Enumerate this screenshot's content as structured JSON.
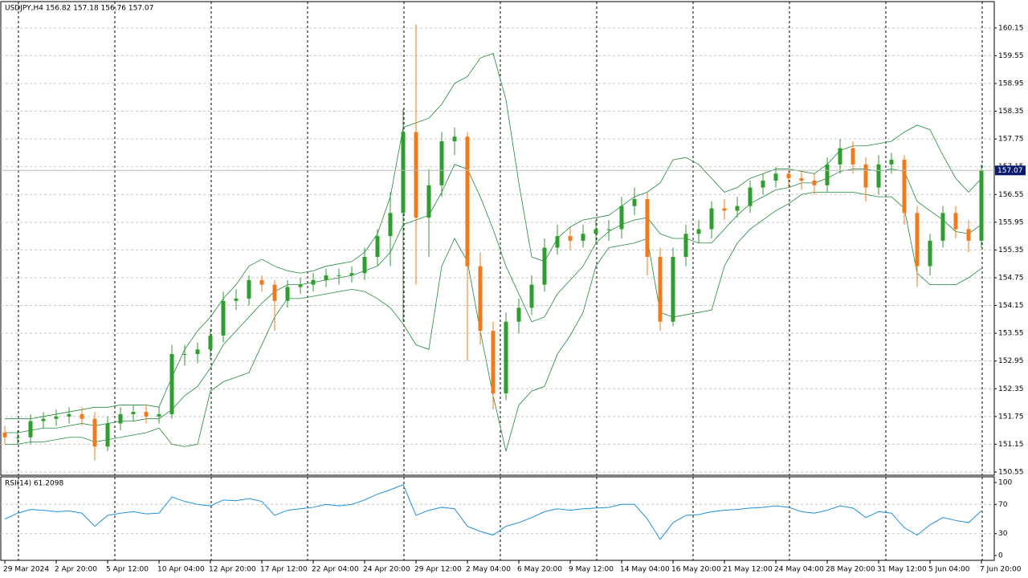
{
  "chart_data": [
    {
      "type": "candlestick",
      "title": "USDJPY,H4  156.82 157.18 156.76 157.07",
      "categories": [
        "29 Mar 2024",
        null,
        null,
        null,
        "2 Apr 20:00",
        null,
        null,
        null,
        "5 Apr 12:00",
        null,
        null,
        null,
        "10 Apr 04:00",
        null,
        null,
        null,
        "12 Apr 20:00",
        null,
        null,
        null,
        "17 Apr 12:00",
        null,
        null,
        null,
        "22 Apr 04:00",
        null,
        null,
        null,
        "24 Apr 20:00",
        null,
        null,
        null,
        "29 Apr 12:00",
        null,
        null,
        null,
        "2 May 04:00",
        null,
        null,
        null,
        "6 May 20:00",
        null,
        null,
        null,
        "9 May 12:00",
        null,
        null,
        null,
        "14 May 04:00",
        null,
        null,
        null,
        "16 May 20:00",
        null,
        null,
        null,
        "21 May 12:00",
        null,
        null,
        null,
        "24 May 04:00",
        null,
        null,
        null,
        "28 May 20:00",
        null,
        null,
        null,
        "31 May 12:00",
        null,
        null,
        null,
        "5 Jun 04:00",
        null,
        null,
        null,
        "7 Jun 20:00"
      ],
      "open": [
        151.4,
        151.3,
        151.3,
        151.65,
        151.7,
        151.75,
        151.8,
        151.7,
        151.1,
        151.6,
        151.8,
        151.85,
        151.75,
        151.8,
        153.1,
        153.1,
        153.2,
        153.5,
        154.25,
        154.3,
        154.7,
        154.6,
        154.25,
        154.55,
        154.6,
        154.7,
        154.8,
        154.8,
        154.85,
        155.2,
        155.65,
        156.15,
        157.9,
        156.05,
        156.75,
        157.7,
        157.8,
        155.0,
        153.6,
        152.25,
        153.8,
        154.1,
        154.6,
        155.4,
        155.65,
        155.55,
        155.7,
        155.8,
        155.8,
        156.3,
        156.45,
        155.2,
        153.8,
        155.2,
        155.7,
        155.8,
        156.25,
        156.2,
        156.3,
        156.7,
        156.85,
        157.0,
        156.9,
        156.85,
        156.75,
        157.2,
        157.55,
        157.2,
        156.7,
        157.2,
        157.3,
        156.15,
        155.0,
        155.55,
        156.15,
        155.8,
        155.55
      ],
      "high": [
        151.55,
        151.45,
        151.8,
        151.85,
        151.9,
        151.95,
        151.95,
        151.85,
        151.75,
        151.95,
        152.0,
        152.0,
        151.95,
        153.3,
        153.3,
        153.35,
        153.65,
        154.45,
        154.5,
        154.8,
        154.8,
        154.7,
        154.7,
        154.75,
        154.85,
        154.95,
        154.95,
        155.0,
        155.4,
        155.8,
        156.6,
        158.4,
        160.23,
        157.1,
        157.9,
        158.0,
        157.9,
        155.3,
        153.8,
        154.0,
        154.3,
        154.8,
        155.6,
        155.9,
        155.85,
        155.9,
        156.0,
        156.0,
        156.5,
        156.7,
        156.6,
        155.4,
        155.4,
        155.9,
        156.0,
        156.4,
        156.45,
        156.5,
        156.85,
        157.0,
        157.15,
        157.1,
        157.05,
        157.0,
        157.35,
        157.75,
        157.7,
        157.35,
        157.4,
        157.45,
        157.4,
        156.3,
        155.7,
        156.3,
        156.3,
        156.0,
        157.2
      ],
      "low": [
        151.15,
        151.15,
        151.15,
        151.5,
        151.55,
        151.6,
        151.55,
        150.8,
        151.0,
        151.45,
        151.65,
        151.6,
        151.6,
        151.7,
        152.85,
        152.9,
        153.0,
        153.35,
        154.05,
        154.15,
        154.45,
        153.6,
        154.1,
        154.4,
        154.45,
        154.55,
        154.6,
        154.65,
        154.7,
        155.0,
        155.0,
        153.8,
        154.6,
        155.2,
        156.5,
        157.4,
        152.95,
        153.3,
        151.9,
        152.1,
        153.55,
        153.95,
        154.45,
        155.25,
        155.35,
        155.4,
        155.5,
        155.55,
        155.6,
        156.1,
        154.8,
        153.6,
        153.7,
        155.0,
        155.5,
        155.6,
        156.0,
        156.05,
        156.15,
        156.55,
        156.7,
        156.7,
        156.65,
        156.55,
        156.6,
        157.0,
        157.0,
        156.4,
        156.55,
        157.0,
        155.9,
        154.55,
        154.8,
        155.4,
        155.6,
        155.3,
        155.4
      ],
      "close": [
        151.3,
        151.3,
        151.65,
        151.7,
        151.75,
        151.8,
        151.7,
        151.1,
        151.6,
        151.8,
        151.85,
        151.75,
        151.8,
        153.1,
        153.1,
        153.2,
        153.5,
        154.25,
        154.3,
        154.7,
        154.6,
        154.25,
        154.55,
        154.6,
        154.7,
        154.8,
        154.8,
        154.85,
        155.2,
        155.65,
        156.15,
        157.9,
        156.05,
        156.75,
        157.7,
        157.8,
        155.0,
        153.6,
        152.25,
        153.8,
        154.1,
        154.6,
        155.4,
        155.65,
        155.55,
        155.7,
        155.8,
        155.8,
        156.3,
        156.45,
        155.2,
        153.8,
        155.2,
        155.7,
        155.8,
        156.25,
        156.2,
        156.3,
        156.7,
        156.85,
        157.0,
        156.9,
        156.85,
        156.75,
        157.2,
        157.55,
        157.2,
        156.7,
        157.2,
        157.3,
        156.15,
        155.0,
        155.55,
        156.15,
        155.8,
        155.55,
        157.07
      ],
      "bands": {
        "color": "#1f8a3a",
        "upper": [
          151.7,
          151.7,
          151.7,
          151.75,
          151.8,
          151.85,
          151.9,
          151.95,
          151.95,
          152.0,
          152.0,
          152.0,
          151.95,
          152.6,
          153.2,
          153.6,
          153.9,
          154.3,
          154.6,
          155.0,
          155.15,
          155.0,
          154.9,
          154.85,
          154.9,
          155.0,
          155.05,
          155.1,
          155.3,
          155.7,
          156.5,
          158.0,
          158.1,
          158.2,
          158.5,
          158.95,
          159.1,
          159.5,
          159.6,
          158.6,
          156.8,
          155.2,
          155.1,
          155.6,
          155.85,
          156.0,
          156.05,
          156.1,
          156.3,
          156.5,
          156.6,
          156.8,
          157.3,
          157.35,
          157.2,
          156.9,
          156.6,
          156.7,
          156.9,
          157.0,
          157.1,
          157.1,
          157.05,
          157.0,
          157.2,
          157.5,
          157.6,
          157.6,
          157.65,
          157.7,
          157.9,
          158.05,
          157.95,
          157.4,
          156.9,
          156.6,
          156.9
        ],
        "middle": [
          151.4,
          151.4,
          151.45,
          151.5,
          151.5,
          151.55,
          151.6,
          151.55,
          151.6,
          151.65,
          151.65,
          151.7,
          151.7,
          151.9,
          152.2,
          152.4,
          152.8,
          153.3,
          153.6,
          153.9,
          154.2,
          154.45,
          154.6,
          154.6,
          154.65,
          154.7,
          154.75,
          154.8,
          154.9,
          155.0,
          155.3,
          155.9,
          156.0,
          156.1,
          156.6,
          157.2,
          157.1,
          156.5,
          155.8,
          155.0,
          154.4,
          153.8,
          153.9,
          154.4,
          154.7,
          155.0,
          155.5,
          155.75,
          155.9,
          156.0,
          156.05,
          155.7,
          155.6,
          155.6,
          155.5,
          155.5,
          155.8,
          156.1,
          156.35,
          156.5,
          156.65,
          156.7,
          156.8,
          156.8,
          156.9,
          157.05,
          157.1,
          157.1,
          157.05,
          157.1,
          157.05,
          156.4,
          156.2,
          156.0,
          155.75,
          155.7,
          155.9
        ],
        "lower": [
          151.15,
          151.15,
          151.2,
          151.2,
          151.25,
          151.3,
          151.3,
          151.2,
          151.25,
          151.3,
          151.35,
          151.4,
          151.5,
          151.15,
          151.1,
          151.15,
          152.3,
          152.5,
          152.6,
          152.7,
          153.3,
          153.9,
          154.3,
          154.3,
          154.35,
          154.4,
          154.45,
          154.5,
          154.45,
          154.3,
          154.1,
          153.75,
          153.3,
          153.2,
          155.0,
          155.6,
          155.1,
          153.6,
          152.2,
          151.0,
          152.0,
          152.3,
          152.4,
          153.1,
          153.5,
          154.0,
          155.0,
          155.4,
          155.45,
          155.5,
          155.6,
          154.0,
          153.9,
          153.95,
          154.0,
          154.05,
          155.0,
          155.5,
          155.8,
          156.0,
          156.2,
          156.35,
          156.55,
          156.6,
          156.6,
          156.6,
          156.6,
          156.55,
          156.5,
          156.5,
          156.25,
          154.85,
          154.6,
          154.6,
          154.6,
          154.75,
          154.95
        ]
      },
      "colors": {
        "up": "#2f9e2f",
        "down": "#f07b1f"
      },
      "ylim": [
        150.48,
        160.72
      ],
      "yticks": [
        160.15,
        159.55,
        158.95,
        158.35,
        157.75,
        157.15,
        156.55,
        155.95,
        155.35,
        154.75,
        154.15,
        153.55,
        152.95,
        152.35,
        151.75,
        151.15,
        150.55
      ],
      "grid": true
    },
    {
      "type": "line",
      "title": "RSI(14) 61.2098",
      "color": "#1e8fe0",
      "values": [
        50,
        58,
        63,
        62,
        60,
        61,
        58,
        40,
        55,
        58,
        60,
        57,
        58,
        80,
        74,
        70,
        68,
        76,
        75,
        78,
        74,
        55,
        62,
        64,
        66,
        70,
        68,
        70,
        76,
        84,
        90,
        97,
        55,
        62,
        66,
        64,
        40,
        33,
        28,
        40,
        45,
        52,
        60,
        64,
        62,
        64,
        65,
        66,
        70,
        70,
        50,
        22,
        45,
        55,
        56,
        60,
        62,
        63,
        65,
        66,
        68,
        66,
        60,
        58,
        62,
        68,
        65,
        52,
        60,
        58,
        38,
        28,
        42,
        52,
        48,
        45,
        61.2098
      ],
      "ylim": [
        -6.6,
        107.7
      ],
      "yticks": [
        100,
        70,
        30,
        0
      ],
      "levels": [
        70,
        30
      ]
    }
  ]
}
